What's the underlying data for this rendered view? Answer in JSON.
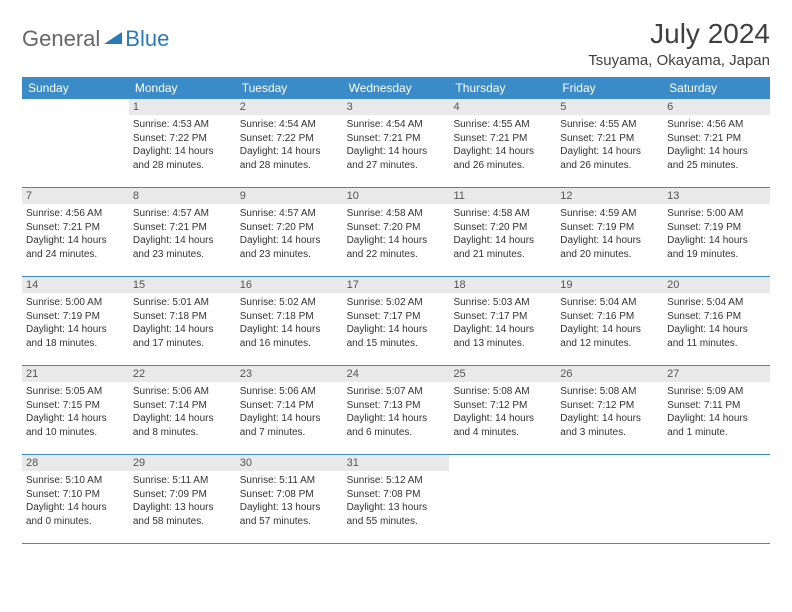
{
  "logo": {
    "part1": "General",
    "part2": "Blue"
  },
  "title": "July 2024",
  "location": "Tsuyama, Okayama, Japan",
  "colors": {
    "header_bg": "#3b8bc8",
    "header_text": "#ffffff",
    "daynum_bg": "#e9e9e9",
    "border": "#3b8bc8",
    "title_color": "#404040",
    "logo_gray": "#666666",
    "logo_blue": "#2a7ab8"
  },
  "weekdays": [
    "Sunday",
    "Monday",
    "Tuesday",
    "Wednesday",
    "Thursday",
    "Friday",
    "Saturday"
  ],
  "weeks": [
    [
      {
        "day": "",
        "sunrise": "",
        "sunset": "",
        "daylight": ""
      },
      {
        "day": "1",
        "sunrise": "Sunrise: 4:53 AM",
        "sunset": "Sunset: 7:22 PM",
        "daylight": "Daylight: 14 hours and 28 minutes."
      },
      {
        "day": "2",
        "sunrise": "Sunrise: 4:54 AM",
        "sunset": "Sunset: 7:22 PM",
        "daylight": "Daylight: 14 hours and 28 minutes."
      },
      {
        "day": "3",
        "sunrise": "Sunrise: 4:54 AM",
        "sunset": "Sunset: 7:21 PM",
        "daylight": "Daylight: 14 hours and 27 minutes."
      },
      {
        "day": "4",
        "sunrise": "Sunrise: 4:55 AM",
        "sunset": "Sunset: 7:21 PM",
        "daylight": "Daylight: 14 hours and 26 minutes."
      },
      {
        "day": "5",
        "sunrise": "Sunrise: 4:55 AM",
        "sunset": "Sunset: 7:21 PM",
        "daylight": "Daylight: 14 hours and 26 minutes."
      },
      {
        "day": "6",
        "sunrise": "Sunrise: 4:56 AM",
        "sunset": "Sunset: 7:21 PM",
        "daylight": "Daylight: 14 hours and 25 minutes."
      }
    ],
    [
      {
        "day": "7",
        "sunrise": "Sunrise: 4:56 AM",
        "sunset": "Sunset: 7:21 PM",
        "daylight": "Daylight: 14 hours and 24 minutes."
      },
      {
        "day": "8",
        "sunrise": "Sunrise: 4:57 AM",
        "sunset": "Sunset: 7:21 PM",
        "daylight": "Daylight: 14 hours and 23 minutes."
      },
      {
        "day": "9",
        "sunrise": "Sunrise: 4:57 AM",
        "sunset": "Sunset: 7:20 PM",
        "daylight": "Daylight: 14 hours and 23 minutes."
      },
      {
        "day": "10",
        "sunrise": "Sunrise: 4:58 AM",
        "sunset": "Sunset: 7:20 PM",
        "daylight": "Daylight: 14 hours and 22 minutes."
      },
      {
        "day": "11",
        "sunrise": "Sunrise: 4:58 AM",
        "sunset": "Sunset: 7:20 PM",
        "daylight": "Daylight: 14 hours and 21 minutes."
      },
      {
        "day": "12",
        "sunrise": "Sunrise: 4:59 AM",
        "sunset": "Sunset: 7:19 PM",
        "daylight": "Daylight: 14 hours and 20 minutes."
      },
      {
        "day": "13",
        "sunrise": "Sunrise: 5:00 AM",
        "sunset": "Sunset: 7:19 PM",
        "daylight": "Daylight: 14 hours and 19 minutes."
      }
    ],
    [
      {
        "day": "14",
        "sunrise": "Sunrise: 5:00 AM",
        "sunset": "Sunset: 7:19 PM",
        "daylight": "Daylight: 14 hours and 18 minutes."
      },
      {
        "day": "15",
        "sunrise": "Sunrise: 5:01 AM",
        "sunset": "Sunset: 7:18 PM",
        "daylight": "Daylight: 14 hours and 17 minutes."
      },
      {
        "day": "16",
        "sunrise": "Sunrise: 5:02 AM",
        "sunset": "Sunset: 7:18 PM",
        "daylight": "Daylight: 14 hours and 16 minutes."
      },
      {
        "day": "17",
        "sunrise": "Sunrise: 5:02 AM",
        "sunset": "Sunset: 7:17 PM",
        "daylight": "Daylight: 14 hours and 15 minutes."
      },
      {
        "day": "18",
        "sunrise": "Sunrise: 5:03 AM",
        "sunset": "Sunset: 7:17 PM",
        "daylight": "Daylight: 14 hours and 13 minutes."
      },
      {
        "day": "19",
        "sunrise": "Sunrise: 5:04 AM",
        "sunset": "Sunset: 7:16 PM",
        "daylight": "Daylight: 14 hours and 12 minutes."
      },
      {
        "day": "20",
        "sunrise": "Sunrise: 5:04 AM",
        "sunset": "Sunset: 7:16 PM",
        "daylight": "Daylight: 14 hours and 11 minutes."
      }
    ],
    [
      {
        "day": "21",
        "sunrise": "Sunrise: 5:05 AM",
        "sunset": "Sunset: 7:15 PM",
        "daylight": "Daylight: 14 hours and 10 minutes."
      },
      {
        "day": "22",
        "sunrise": "Sunrise: 5:06 AM",
        "sunset": "Sunset: 7:14 PM",
        "daylight": "Daylight: 14 hours and 8 minutes."
      },
      {
        "day": "23",
        "sunrise": "Sunrise: 5:06 AM",
        "sunset": "Sunset: 7:14 PM",
        "daylight": "Daylight: 14 hours and 7 minutes."
      },
      {
        "day": "24",
        "sunrise": "Sunrise: 5:07 AM",
        "sunset": "Sunset: 7:13 PM",
        "daylight": "Daylight: 14 hours and 6 minutes."
      },
      {
        "day": "25",
        "sunrise": "Sunrise: 5:08 AM",
        "sunset": "Sunset: 7:12 PM",
        "daylight": "Daylight: 14 hours and 4 minutes."
      },
      {
        "day": "26",
        "sunrise": "Sunrise: 5:08 AM",
        "sunset": "Sunset: 7:12 PM",
        "daylight": "Daylight: 14 hours and 3 minutes."
      },
      {
        "day": "27",
        "sunrise": "Sunrise: 5:09 AM",
        "sunset": "Sunset: 7:11 PM",
        "daylight": "Daylight: 14 hours and 1 minute."
      }
    ],
    [
      {
        "day": "28",
        "sunrise": "Sunrise: 5:10 AM",
        "sunset": "Sunset: 7:10 PM",
        "daylight": "Daylight: 14 hours and 0 minutes."
      },
      {
        "day": "29",
        "sunrise": "Sunrise: 5:11 AM",
        "sunset": "Sunset: 7:09 PM",
        "daylight": "Daylight: 13 hours and 58 minutes."
      },
      {
        "day": "30",
        "sunrise": "Sunrise: 5:11 AM",
        "sunset": "Sunset: 7:08 PM",
        "daylight": "Daylight: 13 hours and 57 minutes."
      },
      {
        "day": "31",
        "sunrise": "Sunrise: 5:12 AM",
        "sunset": "Sunset: 7:08 PM",
        "daylight": "Daylight: 13 hours and 55 minutes."
      },
      {
        "day": "",
        "sunrise": "",
        "sunset": "",
        "daylight": ""
      },
      {
        "day": "",
        "sunrise": "",
        "sunset": "",
        "daylight": ""
      },
      {
        "day": "",
        "sunrise": "",
        "sunset": "",
        "daylight": ""
      }
    ]
  ]
}
